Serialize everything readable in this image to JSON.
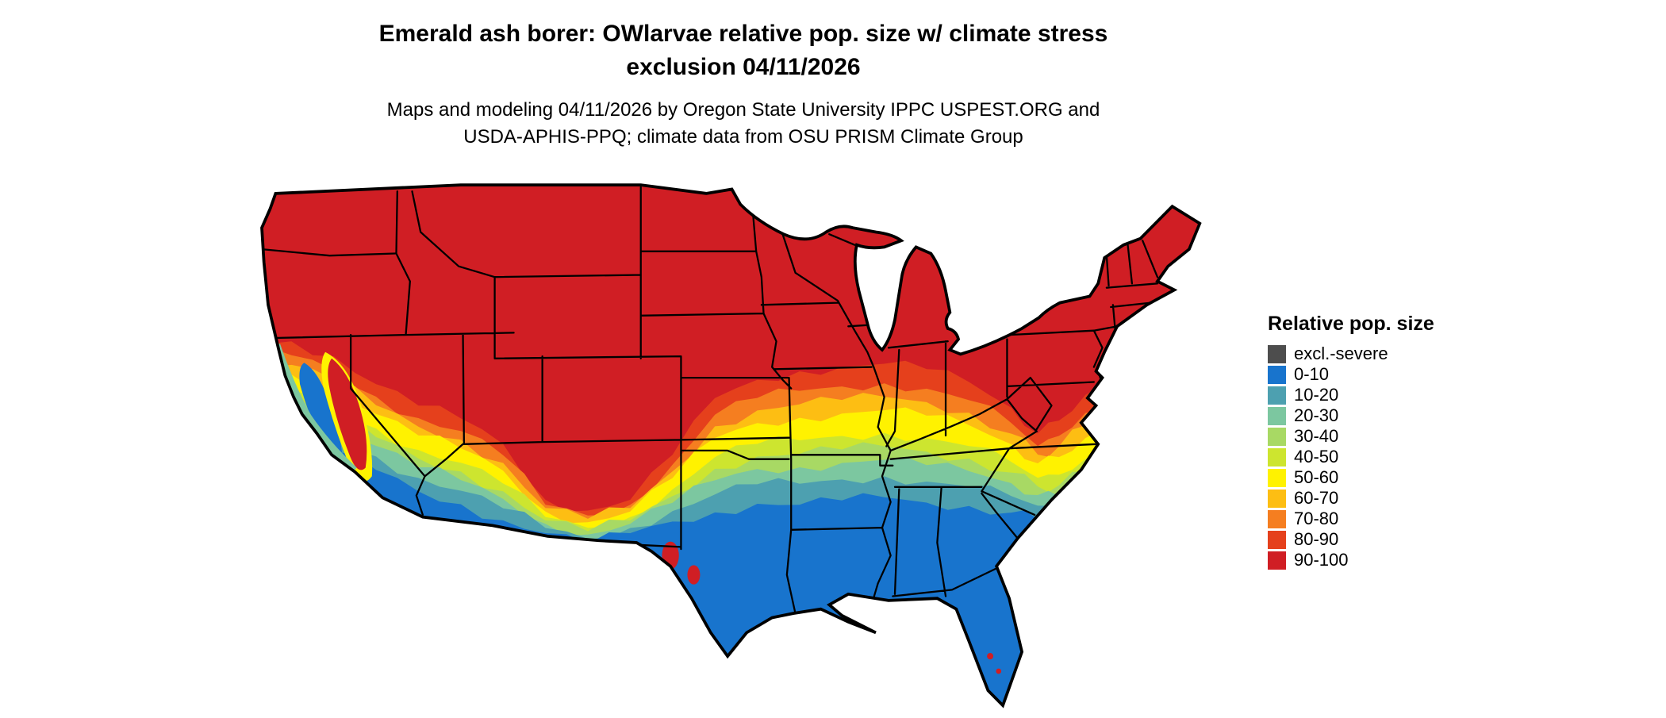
{
  "title": {
    "line1": "Emerald ash borer: OWlarvae relative pop. size w/ climate stress",
    "line2": "exclusion 04/11/2026"
  },
  "subtitle": {
    "line1": "Maps and modeling 04/11/2026 by Oregon State University IPPC USPEST.ORG and",
    "line2": "USDA-APHIS-PPQ; climate data from OSU PRISM Climate Group"
  },
  "legend": {
    "title": "Relative pop. size",
    "entries": [
      {
        "label": "excl.-severe",
        "color": "#4d4d4d"
      },
      {
        "label": "0-10",
        "color": "#1874CD"
      },
      {
        "label": "10-20",
        "color": "#4DA0B0"
      },
      {
        "label": "20-30",
        "color": "#7CC7A0"
      },
      {
        "label": "30-40",
        "color": "#A8D964"
      },
      {
        "label": "40-50",
        "color": "#CDE52F"
      },
      {
        "label": "50-60",
        "color": "#FFF200"
      },
      {
        "label": "60-70",
        "color": "#FDBE13"
      },
      {
        "label": "70-80",
        "color": "#F57E20"
      },
      {
        "label": "80-90",
        "color": "#E5401C"
      },
      {
        "label": "90-100",
        "color": "#D01E24"
      }
    ]
  },
  "chart_data": {
    "type": "choropleth-map",
    "region": "contiguous United States with state boundaries",
    "variable": "Relative pop. size (emerald ash borer overwintering larvae)",
    "classes": [
      "excl.-severe",
      "0-10",
      "10-20",
      "20-30",
      "30-40",
      "40-50",
      "50-60",
      "60-70",
      "70-80",
      "80-90",
      "90-100"
    ],
    "visible_pattern": "Northern tier (Pacific Northwest, northern Rockies, northern Plains, Great Lakes, Northeast) is 90-100 (red). Values decrease southward through orange, yellow and green bands across the central Plains, lower Midwest and mid-Atlantic. The Gulf Coast states, Texas, Florida, southern California deserts and southern Arizona/New Mexico are 0-10 (blue). Red extends south along high terrain: Sierra Nevada, Great Basin, Utah, Colorado Rockies, Arizona/New Mexico highlands and the central Appalachians. California's Central Valley and coast are blue/teal.",
    "legend_position": "right"
  }
}
